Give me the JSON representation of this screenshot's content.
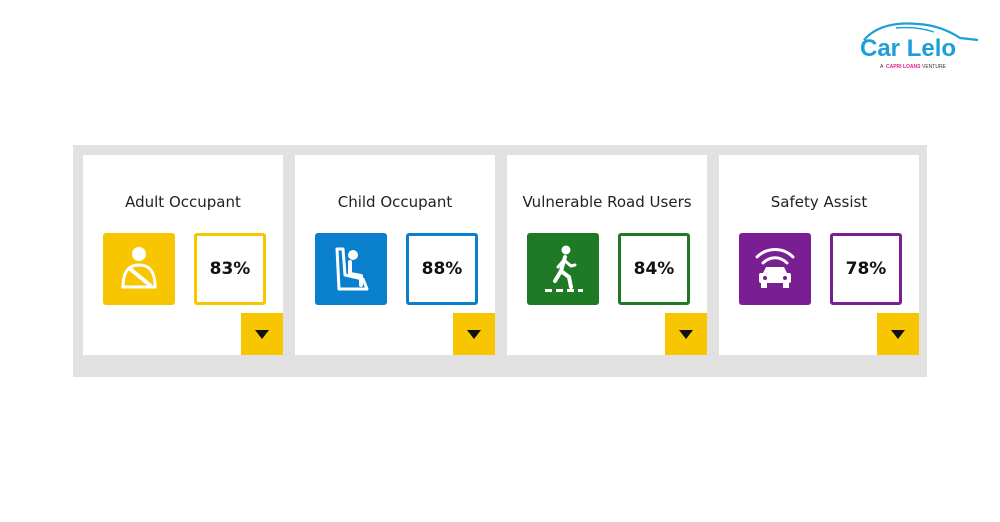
{
  "logo": {
    "brand": "Car Lelo",
    "tagline_prefix": "A",
    "tagline_brand": "CAPRI LOANS",
    "tagline_suffix": "VENTURE",
    "brand_color": "#1c9fd8",
    "accent_color": "#e0218a"
  },
  "ratings": [
    {
      "title": "Adult Occupant",
      "score": "83%",
      "score_value": 83,
      "icon": "seatbelt-icon",
      "color": "#f7c600"
    },
    {
      "title": "Child Occupant",
      "score": "88%",
      "score_value": 88,
      "icon": "child-seat-icon",
      "color": "#0a7fcc"
    },
    {
      "title": "Vulnerable Road Users",
      "score": "84%",
      "score_value": 84,
      "icon": "pedestrian-icon",
      "color": "#1e7a24"
    },
    {
      "title": "Safety Assist",
      "score": "78%",
      "score_value": 78,
      "icon": "car-sensor-icon",
      "color": "#7a1e94"
    }
  ],
  "expand_color": "#f7c600"
}
